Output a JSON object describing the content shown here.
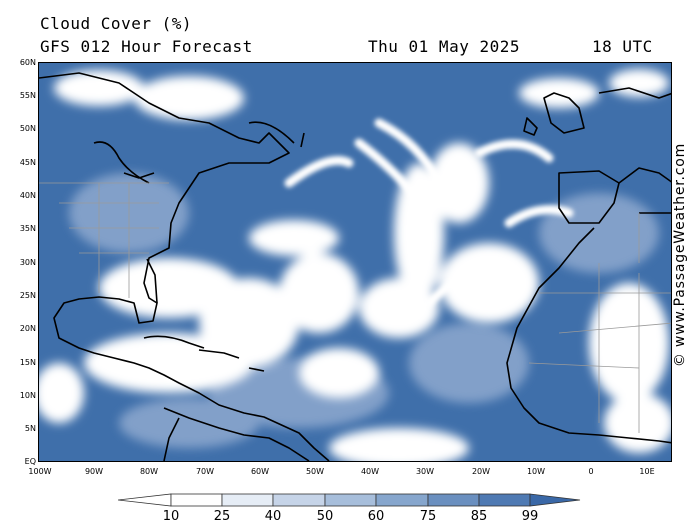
{
  "header": {
    "title": "Cloud Cover (%)",
    "subtitle": "GFS 012 Hour Forecast",
    "date": "Thu 01 May 2025",
    "time": "18 UTC"
  },
  "map": {
    "lat_labels": [
      "60N",
      "55N",
      "50N",
      "45N",
      "40N",
      "35N",
      "30N",
      "25N",
      "20N",
      "15N",
      "10N",
      "5N",
      "EQ"
    ],
    "lon_labels": [
      "100W",
      "90W",
      "80W",
      "70W",
      "60W",
      "50W",
      "40W",
      "30W",
      "20W",
      "10W",
      "0",
      "10E"
    ],
    "colors": {
      "cloud_high": "#3f6faa",
      "cloud_mid": "#8ea9cf",
      "clear": "#ffffff",
      "coast": "#000000",
      "border": "#9a9a9a"
    }
  },
  "legend": {
    "labels": [
      "10",
      "25",
      "40",
      "50",
      "60",
      "75",
      "85",
      "99"
    ],
    "colors": [
      "#ffffff",
      "#e6edf6",
      "#c6d4e8",
      "#a7bedb",
      "#86a6cd",
      "#6a8fbf",
      "#4f7ab3",
      "#3a68a7"
    ]
  },
  "credit": "© www.PassageWeather.com"
}
